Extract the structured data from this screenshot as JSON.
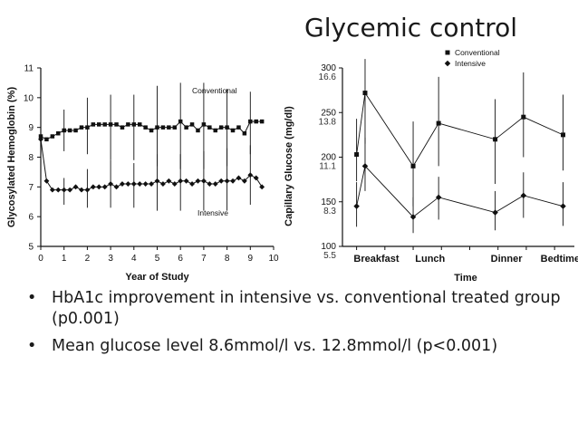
{
  "slide": {
    "title": "Glycemic control"
  },
  "bullets": [
    "HbA1c improvement in intensive vs. conventional treated group (p0.001)",
    "Mean glucose level 8.6mmol/l vs. 12.8mmol/l (p<0.001)"
  ],
  "colors": {
    "ink": "#111111",
    "text": "#1a1a1a",
    "background": "#ffffff"
  },
  "chart_data": [
    {
      "type": "line",
      "title": "",
      "xlabel": "Year of Study",
      "ylabel": "Glycosylated Hemoglobin (%)",
      "xlim": [
        0,
        10
      ],
      "ylim": [
        5,
        11
      ],
      "xticks": [
        "0",
        "1",
        "2",
        "3",
        "4",
        "5",
        "6",
        "7",
        "8",
        "9",
        "10"
      ],
      "yticks": [
        "5",
        "6",
        "7",
        "8",
        "9",
        "10",
        "11"
      ],
      "errorbar_x": [
        1,
        2,
        3,
        4,
        5,
        6,
        7,
        8,
        9
      ],
      "series": [
        {
          "name": "Conventional",
          "label_text": "Conventional",
          "marker": "square",
          "x": [
            0,
            0.25,
            0.5,
            0.75,
            1,
            1.25,
            1.5,
            1.75,
            2,
            2.25,
            2.5,
            2.75,
            3,
            3.25,
            3.5,
            3.75,
            4,
            4.25,
            4.5,
            4.75,
            5,
            5.25,
            5.5,
            5.75,
            6,
            6.25,
            6.5,
            6.75,
            7,
            7.25,
            7.5,
            7.75,
            8,
            8.25,
            8.5,
            8.75,
            9,
            9.25,
            9.5
          ],
          "values": [
            8.7,
            8.6,
            8.7,
            8.8,
            8.9,
            8.9,
            8.9,
            9.0,
            9.0,
            9.1,
            9.1,
            9.1,
            9.1,
            9.1,
            9.0,
            9.1,
            9.1,
            9.1,
            9.0,
            8.9,
            9.0,
            9.0,
            9.0,
            9.0,
            9.2,
            9.0,
            9.1,
            8.9,
            9.1,
            9.0,
            8.9,
            9.0,
            9.0,
            8.9,
            9.0,
            8.8,
            9.2,
            9.2,
            9.2
          ],
          "errorbars": [
            {
              "x": 1,
              "lo": 8.2,
              "hi": 9.6
            },
            {
              "x": 2,
              "lo": 8.1,
              "hi": 10.0
            },
            {
              "x": 3,
              "lo": 7.9,
              "hi": 10.1
            },
            {
              "x": 4,
              "lo": 7.9,
              "hi": 10.1
            },
            {
              "x": 5,
              "lo": 7.7,
              "hi": 10.4
            },
            {
              "x": 6,
              "lo": 7.6,
              "hi": 10.5
            },
            {
              "x": 7,
              "lo": 7.6,
              "hi": 10.5
            },
            {
              "x": 8,
              "lo": 7.7,
              "hi": 10.3
            },
            {
              "x": 9,
              "lo": 8.1,
              "hi": 10.2
            }
          ]
        },
        {
          "name": "Intensive",
          "label_text": "Intensive",
          "marker": "diamond",
          "x": [
            0,
            0.25,
            0.5,
            0.75,
            1,
            1.25,
            1.5,
            1.75,
            2,
            2.25,
            2.5,
            2.75,
            3,
            3.25,
            3.5,
            3.75,
            4,
            4.25,
            4.5,
            4.75,
            5,
            5.25,
            5.5,
            5.75,
            6,
            6.25,
            6.5,
            6.75,
            7,
            7.25,
            7.5,
            7.75,
            8,
            8.25,
            8.5,
            8.75,
            9,
            9.25,
            9.5
          ],
          "values": [
            8.6,
            7.2,
            6.9,
            6.9,
            6.9,
            6.9,
            7.0,
            6.9,
            6.9,
            7.0,
            7.0,
            7.0,
            7.1,
            7.0,
            7.1,
            7.1,
            7.1,
            7.1,
            7.1,
            7.1,
            7.2,
            7.1,
            7.2,
            7.1,
            7.2,
            7.2,
            7.1,
            7.2,
            7.2,
            7.1,
            7.1,
            7.2,
            7.2,
            7.2,
            7.3,
            7.2,
            7.4,
            7.3,
            7.0
          ],
          "errorbars": [
            {
              "x": 1,
              "lo": 6.4,
              "hi": 7.3
            },
            {
              "x": 2,
              "lo": 6.3,
              "hi": 7.6
            },
            {
              "x": 3,
              "lo": 6.3,
              "hi": 7.9
            },
            {
              "x": 4,
              "lo": 6.3,
              "hi": 7.8
            },
            {
              "x": 5,
              "lo": 6.2,
              "hi": 8.1
            },
            {
              "x": 6,
              "lo": 6.2,
              "hi": 8.1
            },
            {
              "x": 7,
              "lo": 6.2,
              "hi": 8.2
            },
            {
              "x": 8,
              "lo": 6.2,
              "hi": 8.3
            },
            {
              "x": 9,
              "lo": 6.4,
              "hi": 8.4
            }
          ]
        }
      ]
    },
    {
      "type": "line",
      "title": "",
      "xlabel": "Time",
      "ylabel": "Capillary Glucose (mg/dl)",
      "ylim": [
        100,
        300
      ],
      "x": [
        0,
        1,
        2,
        3,
        4,
        5,
        6,
        7
      ],
      "xlim": [
        -0.5,
        7.7
      ],
      "categories": [
        "Breakfast",
        "Lunch",
        "Dinner",
        "Bedtime"
      ],
      "category_x": [
        0.7,
        2.6,
        5.3,
        7.2
      ],
      "xticks_at": [
        0,
        1,
        2,
        3,
        4,
        5,
        6,
        7
      ],
      "yticks": [
        "100",
        "150",
        "200",
        "250",
        "300"
      ],
      "ytick_values": [
        100,
        150,
        200,
        250,
        300
      ],
      "secondary_ytick_labels": [
        "5.5",
        "8.3",
        "11.1",
        "13.8",
        "16.6"
      ],
      "legend": {
        "placement": "top-right",
        "entries": [
          "Conventional",
          "Intensive"
        ]
      },
      "series": [
        {
          "name": "Conventional",
          "marker": "square",
          "values": [
            203,
            272,
            190,
            238,
            220,
            245,
            225
          ],
          "x": [
            0,
            0.3,
            2,
            2.9,
            4.9,
            5.9,
            7.3
          ],
          "errorbars": [
            {
              "x": 0,
              "lo": 173,
              "hi": 243
            },
            {
              "x": 0.3,
              "lo": 215,
              "hi": 310
            },
            {
              "x": 2,
              "lo": 145,
              "hi": 240
            },
            {
              "x": 2.9,
              "lo": 190,
              "hi": 290
            },
            {
              "x": 4.9,
              "lo": 170,
              "hi": 265
            },
            {
              "x": 5.9,
              "lo": 200,
              "hi": 295
            },
            {
              "x": 7.3,
              "lo": 185,
              "hi": 270
            }
          ]
        },
        {
          "name": "Intensive",
          "marker": "diamond",
          "values": [
            145,
            190,
            133,
            155,
            138,
            157,
            145
          ],
          "x": [
            0,
            0.3,
            2,
            2.9,
            4.9,
            5.9,
            7.3
          ],
          "errorbars": [
            {
              "x": 0,
              "lo": 122,
              "hi": 172
            },
            {
              "x": 0.3,
              "lo": 162,
              "hi": 222
            },
            {
              "x": 2,
              "lo": 115,
              "hi": 155
            },
            {
              "x": 2.9,
              "lo": 130,
              "hi": 178
            },
            {
              "x": 4.9,
              "lo": 118,
              "hi": 162
            },
            {
              "x": 5.9,
              "lo": 132,
              "hi": 183
            },
            {
              "x": 7.3,
              "lo": 123,
              "hi": 172
            }
          ]
        }
      ]
    }
  ]
}
